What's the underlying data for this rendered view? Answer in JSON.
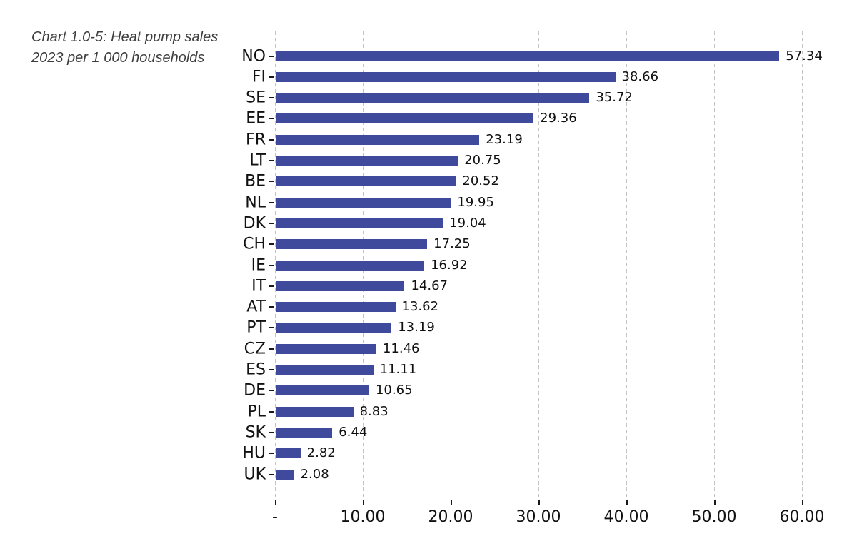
{
  "page": {
    "background_color": "#ffffff"
  },
  "chart_data": {
    "type": "bar",
    "orientation": "horizontal",
    "title": "Chart 1.0-5: Heat pump sales 2023 per 1 000 households",
    "title_lines": [
      "Chart 1.0-5: Heat pump sales",
      "2023 per 1 000 households"
    ],
    "xlabel": "",
    "ylabel": "",
    "categories": [
      "NO",
      "FI",
      "SE",
      "EE",
      "FR",
      "LT",
      "BE",
      "NL",
      "DK",
      "CH",
      "IE",
      "IT",
      "AT",
      "PT",
      "CZ",
      "ES",
      "DE",
      "PL",
      "SK",
      "HU",
      "UK"
    ],
    "values": [
      57.34,
      38.66,
      35.72,
      29.36,
      23.19,
      20.75,
      20.52,
      19.95,
      19.04,
      17.25,
      16.92,
      14.67,
      13.62,
      13.19,
      11.46,
      11.11,
      10.65,
      8.83,
      6.44,
      2.82,
      2.08
    ],
    "value_label_decimals": 2,
    "xlim": [
      0,
      60
    ],
    "x_ticks": [
      0,
      10,
      20,
      30,
      40,
      50,
      60
    ],
    "x_tick_labels": [
      "-",
      "10.00",
      "20.00",
      "30.00",
      "40.00",
      "50.00",
      "60.00"
    ],
    "grid": "vertical-dashed",
    "legend": "none",
    "colors": {
      "bar": "#3f4a9c",
      "gridline": "#c4c4c4",
      "tick": "#1a1a1a",
      "label_text": "#111111",
      "title_text": "#3d3d3d"
    }
  }
}
